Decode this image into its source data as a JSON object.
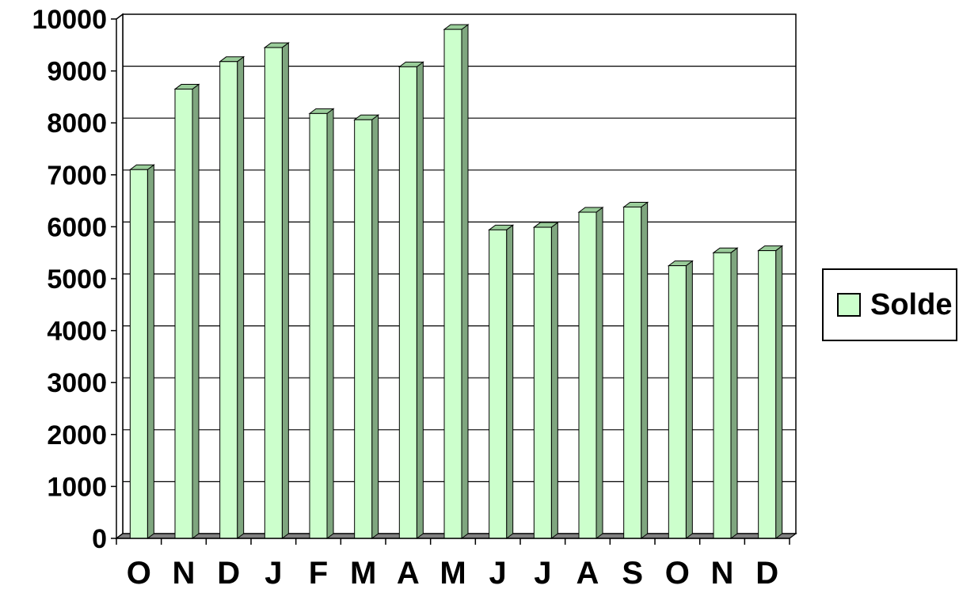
{
  "chart_data": {
    "type": "bar",
    "categories": [
      "O",
      "N",
      "D",
      "J",
      "F",
      "M",
      "A",
      "M",
      "J",
      "J",
      "A",
      "S",
      "O",
      "N",
      "D"
    ],
    "series": [
      {
        "name": "Solde",
        "values": [
          7100,
          8650,
          9180,
          9450,
          8180,
          8060,
          9080,
          9800,
          5940,
          5990,
          6280,
          6380,
          5250,
          5500,
          5540
        ]
      }
    ],
    "ylim": [
      0,
      10000
    ],
    "yticks": [
      0,
      1000,
      2000,
      3000,
      4000,
      5000,
      6000,
      7000,
      8000,
      9000,
      10000
    ],
    "grid": true,
    "legend_position": "right",
    "style": "3d-column",
    "colors": {
      "bar_front": "#ccffcc",
      "bar_top": "#99cc99",
      "bar_side": "#7fa67f",
      "axis": "#000000",
      "grid": "#000000",
      "floor": "#808080"
    }
  },
  "legend": {
    "label": "Solde"
  }
}
